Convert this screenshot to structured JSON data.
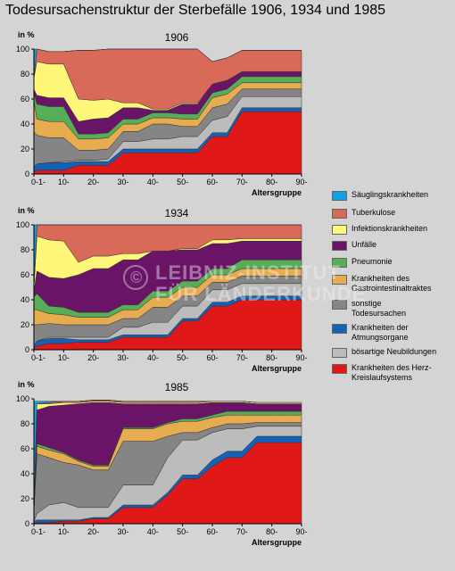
{
  "title": "Todesursachenstruktur der Sterbefälle 1906, 1934 und 1985",
  "watermark": [
    "LEIBNIZ-INSTITUT",
    "FÜR LÄNDERKUNDE"
  ],
  "watermark_symbol": "©",
  "legend": [
    {
      "label": "Säuglingskrankheiten",
      "color": "#12a0e0"
    },
    {
      "label": "Tuberkulose",
      "color": "#d96a5a"
    },
    {
      "label": "Infektionskrankheiten",
      "color": "#fff77a"
    },
    {
      "label": "Unfälle",
      "color": "#6a1468"
    },
    {
      "label": "Pneumonie",
      "color": "#58ad58"
    },
    {
      "label": "Krankheiten des Gastrointestinaltraktes",
      "color": "#e8ac50"
    },
    {
      "label": "sonstige Todesursachen",
      "color": "#858585"
    },
    {
      "label": "Krankheiten der Atmungsorgane",
      "color": "#1462b8"
    },
    {
      "label": "bösartige Neubildungen",
      "color": "#bcbcbc"
    },
    {
      "label": "Krankheiten des Herz-Kreislaufsystems",
      "color": "#e01818"
    }
  ],
  "chart_data": [
    {
      "type": "area",
      "title": "1906",
      "ylabel": "in %",
      "xlabel": "Altersgruppe",
      "ylim": [
        0,
        100
      ],
      "yticks": [
        0,
        20,
        40,
        60,
        80,
        100
      ],
      "xtick_labels": [
        "0-1-",
        "10-",
        "20-",
        "30-",
        "40-",
        "50-",
        "60-",
        "70-",
        "80-",
        "90-"
      ],
      "x": [
        0,
        1,
        5,
        10,
        15,
        20,
        25,
        30,
        35,
        40,
        45,
        50,
        55,
        60,
        65,
        70,
        75,
        80,
        85,
        90
      ],
      "series": [
        {
          "name": "Krankheiten des Herz-Kreislaufsystems",
          "values": [
            2,
            3,
            3,
            3,
            7,
            7,
            7,
            17,
            17,
            17,
            17,
            17,
            17,
            30,
            30,
            50,
            50,
            50,
            50,
            50
          ]
        },
        {
          "name": "Krankheiten der Atmungsorgane",
          "values": [
            4,
            5,
            6,
            6,
            3,
            3,
            3,
            3,
            3,
            3,
            3,
            3,
            3,
            3,
            3,
            3,
            3,
            3,
            3,
            3
          ]
        },
        {
          "name": "bösartige Neubildungen",
          "values": [
            0,
            0,
            0,
            1,
            1,
            1,
            2,
            6,
            6,
            8,
            8,
            10,
            10,
            10,
            13,
            9,
            9,
            9,
            9,
            9
          ]
        },
        {
          "name": "sonstige Todesursachen",
          "values": [
            28,
            23,
            20,
            19,
            8,
            8,
            8,
            8,
            8,
            12,
            12,
            8,
            8,
            10,
            10,
            6,
            6,
            6,
            6,
            6
          ]
        },
        {
          "name": "Krankheiten des Gastrointestinaltraktes",
          "values": [
            25,
            13,
            13,
            13,
            9,
            9,
            9,
            6,
            6,
            5,
            5,
            6,
            6,
            8,
            8,
            5,
            5,
            5,
            5,
            5
          ]
        },
        {
          "name": "Pneumonie",
          "values": [
            6,
            12,
            12,
            12,
            4,
            4,
            4,
            4,
            4,
            4,
            4,
            4,
            4,
            4,
            4,
            5,
            5,
            5,
            5,
            5
          ]
        },
        {
          "name": "Unfälle",
          "values": [
            3,
            7,
            7,
            7,
            10,
            12,
            12,
            9,
            9,
            2,
            2,
            8,
            8,
            7,
            7,
            4,
            4,
            4,
            4,
            4
          ]
        },
        {
          "name": "Infektionskrankheiten",
          "values": [
            9,
            27,
            27,
            27,
            18,
            15,
            15,
            4,
            4,
            1,
            1,
            1,
            1,
            0,
            0,
            0,
            0,
            0,
            0,
            0
          ]
        },
        {
          "name": "Tuberkulose",
          "values": [
            0,
            10,
            10,
            10,
            39,
            40,
            40,
            43,
            43,
            48,
            48,
            43,
            43,
            18,
            18,
            17,
            17,
            17,
            17,
            17
          ]
        },
        {
          "name": "Säuglingskrankheiten",
          "values": [
            23,
            0,
            0,
            0,
            0,
            0,
            0,
            0,
            0,
            0,
            0,
            0,
            0,
            0,
            0,
            0,
            0,
            0,
            0,
            0
          ]
        }
      ]
    },
    {
      "type": "area",
      "title": "1934",
      "ylabel": "in %",
      "xlabel": "Altersgruppe",
      "ylim": [
        0,
        100
      ],
      "yticks": [
        0,
        20,
        40,
        60,
        80,
        100
      ],
      "xtick_labels": [
        "0-1-",
        "10-",
        "20-",
        "30-",
        "40-",
        "50-",
        "60-",
        "70-",
        "80-",
        "90-"
      ],
      "x": [
        0,
        1,
        5,
        10,
        15,
        20,
        25,
        30,
        35,
        40,
        45,
        50,
        55,
        60,
        65,
        70,
        75,
        80,
        85,
        90
      ],
      "series": [
        {
          "name": "Krankheiten des Herz-Kreislaufsystems",
          "values": [
            1,
            3,
            5,
            5,
            6,
            6,
            6,
            10,
            10,
            10,
            10,
            23,
            23,
            35,
            35,
            40,
            40,
            40,
            40,
            40
          ]
        },
        {
          "name": "Krankheiten der Atmungsorgane",
          "values": [
            2,
            4,
            4,
            4,
            2,
            2,
            2,
            2,
            2,
            2,
            2,
            2,
            2,
            3,
            3,
            3,
            3,
            3,
            3,
            3
          ]
        },
        {
          "name": "bösartige Neubildungen",
          "values": [
            0,
            0,
            1,
            1,
            2,
            2,
            2,
            6,
            6,
            10,
            10,
            10,
            10,
            10,
            10,
            10,
            10,
            10,
            10,
            10
          ]
        },
        {
          "name": "sonstige Todesursachen",
          "values": [
            17,
            13,
            11,
            10,
            10,
            10,
            10,
            7,
            7,
            12,
            12,
            8,
            8,
            6,
            6,
            6,
            6,
            6,
            6,
            6
          ]
        },
        {
          "name": "Krankheiten des Gastrointestinaltraktes",
          "values": [
            12,
            12,
            8,
            8,
            6,
            6,
            6,
            7,
            7,
            8,
            8,
            7,
            7,
            6,
            6,
            6,
            6,
            6,
            6,
            6
          ]
        },
        {
          "name": "Pneumonie",
          "values": [
            10,
            13,
            6,
            6,
            4,
            4,
            4,
            4,
            4,
            5,
            5,
            5,
            5,
            5,
            5,
            7,
            7,
            7,
            7,
            7
          ]
        },
        {
          "name": "Unfälle",
          "values": [
            5,
            18,
            23,
            23,
            30,
            35,
            35,
            36,
            36,
            32,
            32,
            25,
            25,
            20,
            20,
            15,
            15,
            15,
            15,
            15
          ]
        },
        {
          "name": "Infektionskrankheiten",
          "values": [
            3,
            28,
            30,
            30,
            10,
            10,
            10,
            5,
            5,
            0,
            0,
            1,
            1,
            3,
            3,
            2,
            2,
            2,
            2,
            2
          ]
        },
        {
          "name": "Tuberkulose",
          "values": [
            0,
            9,
            12,
            13,
            30,
            25,
            25,
            23,
            23,
            21,
            21,
            19,
            19,
            12,
            12,
            11,
            11,
            11,
            11,
            11
          ]
        },
        {
          "name": "Säuglingskrankheiten",
          "values": [
            50,
            0,
            0,
            0,
            0,
            0,
            0,
            0,
            0,
            0,
            0,
            0,
            0,
            0,
            0,
            0,
            0,
            0,
            0,
            0
          ]
        }
      ]
    },
    {
      "type": "area",
      "title": "1985",
      "ylabel": "in %",
      "xlabel": "Altersgruppe",
      "ylim": [
        0,
        100
      ],
      "yticks": [
        0,
        20,
        40,
        60,
        80,
        100
      ],
      "xtick_labels": [
        "0-1-",
        "10-",
        "20-",
        "30-",
        "40-",
        "50-",
        "60-",
        "70-",
        "80-",
        "90-"
      ],
      "x": [
        0,
        1,
        5,
        10,
        15,
        20,
        25,
        30,
        35,
        40,
        45,
        50,
        55,
        60,
        65,
        70,
        75,
        80,
        85,
        90
      ],
      "series": [
        {
          "name": "Krankheiten des Herz-Kreislaufsystems",
          "values": [
            0,
            1,
            1,
            2,
            2,
            4,
            4,
            13,
            13,
            13,
            23,
            36,
            36,
            46,
            53,
            53,
            65,
            65,
            65,
            65
          ]
        },
        {
          "name": "Krankheiten der Atmungsorgane",
          "values": [
            2,
            2,
            2,
            1,
            1,
            1,
            1,
            2,
            2,
            2,
            2,
            3,
            3,
            5,
            5,
            5,
            5,
            5,
            5,
            5
          ]
        },
        {
          "name": "bösartige Neubildungen",
          "values": [
            0,
            5,
            12,
            14,
            10,
            8,
            8,
            16,
            16,
            16,
            28,
            28,
            28,
            22,
            18,
            18,
            8,
            8,
            8,
            8
          ]
        },
        {
          "name": "sonstige Todesursachen",
          "values": [
            8,
            48,
            38,
            32,
            34,
            30,
            30,
            35,
            35,
            35,
            17,
            6,
            6,
            4,
            4,
            4,
            3,
            3,
            3,
            3
          ]
        },
        {
          "name": "Krankheiten des Gastrointestinaltraktes",
          "values": [
            0,
            6,
            6,
            7,
            3,
            3,
            3,
            10,
            10,
            10,
            10,
            9,
            9,
            8,
            7,
            7,
            6,
            6,
            6,
            6
          ]
        },
        {
          "name": "Pneumonie",
          "values": [
            0,
            2,
            2,
            1,
            1,
            1,
            1,
            1,
            1,
            1,
            1,
            2,
            2,
            2,
            3,
            3,
            3,
            3,
            3,
            3
          ]
        },
        {
          "name": "Unfälle",
          "values": [
            0,
            27,
            33,
            38,
            45,
            50,
            50,
            19,
            19,
            19,
            15,
            12,
            12,
            10,
            7,
            7,
            6,
            6,
            6,
            6
          ]
        },
        {
          "name": "Infektionskrankheiten",
          "values": [
            0,
            5,
            2,
            2,
            1,
            1,
            1,
            1,
            1,
            1,
            1,
            1,
            1,
            1,
            1,
            1,
            1,
            1,
            1,
            1
          ]
        },
        {
          "name": "Tuberkulose",
          "values": [
            0,
            0,
            1,
            1,
            1,
            1,
            1,
            1,
            1,
            1,
            1,
            1,
            1,
            0,
            0,
            0,
            0,
            0,
            0,
            0
          ]
        },
        {
          "name": "Säuglingskrankheiten",
          "values": [
            88,
            2,
            1,
            0,
            0,
            0,
            0,
            0,
            0,
            0,
            0,
            0,
            0,
            0,
            0,
            0,
            0,
            0,
            0,
            0
          ]
        }
      ]
    }
  ]
}
